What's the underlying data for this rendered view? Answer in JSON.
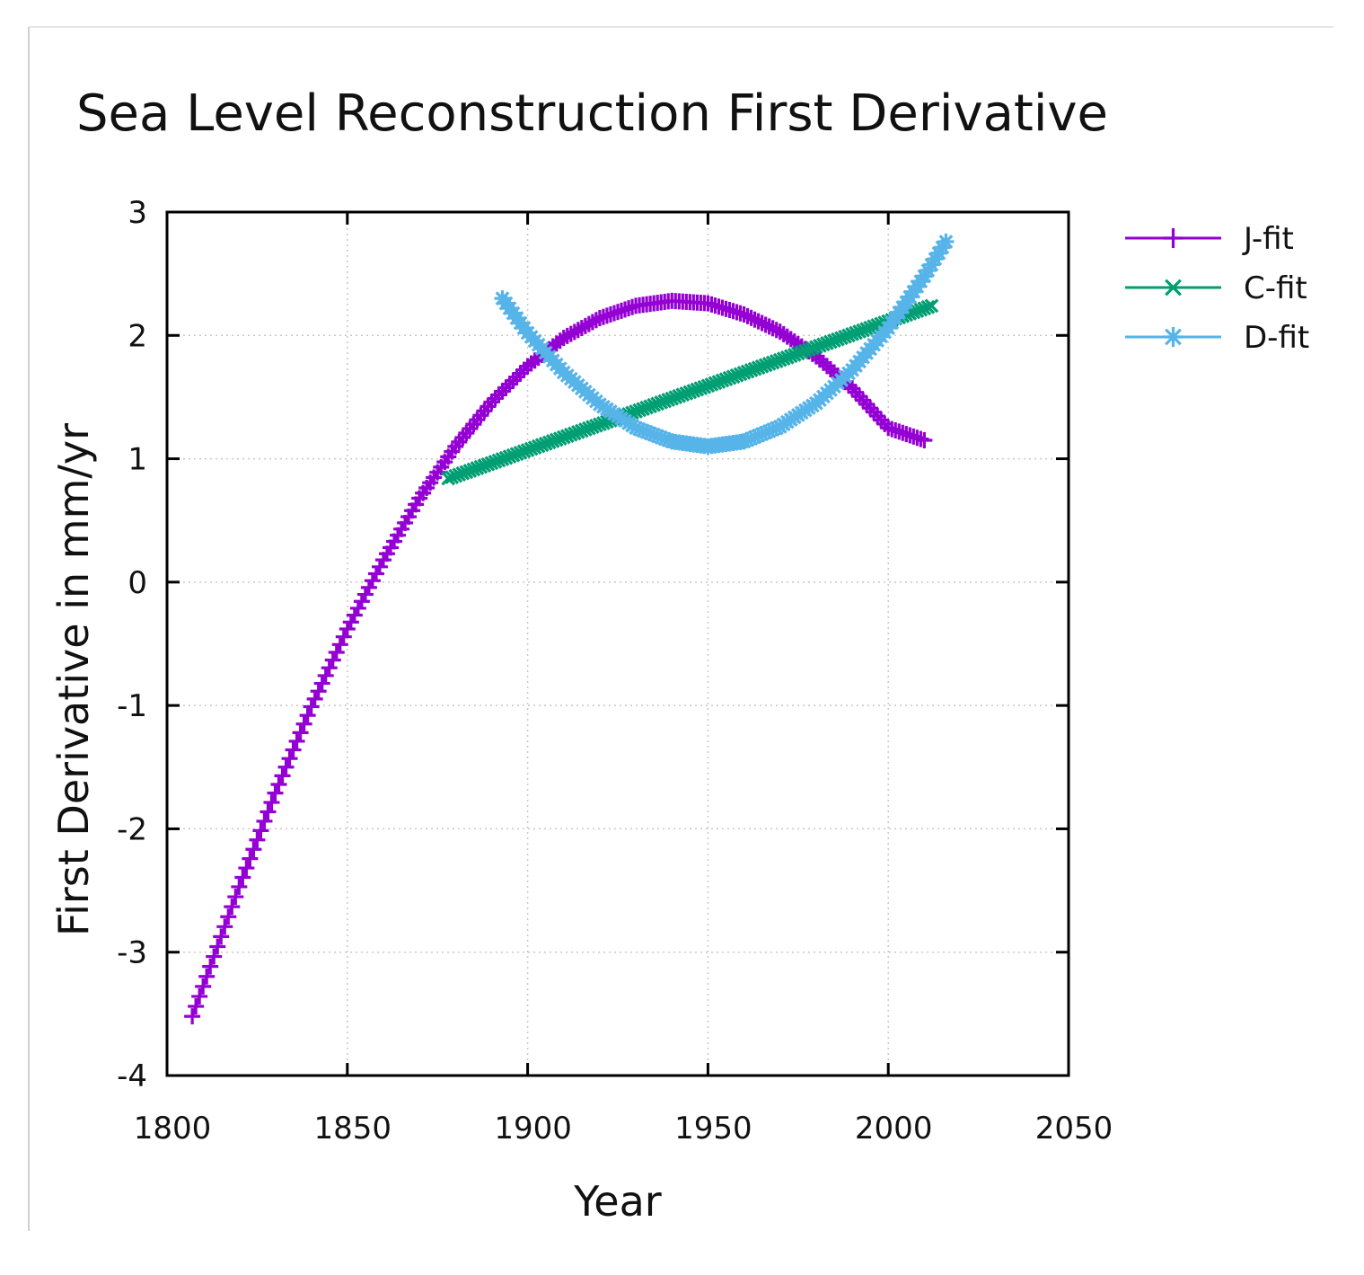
{
  "chart_data": {
    "type": "line",
    "title": "Sea Level Reconstruction First Derivative",
    "xlabel": "Year",
    "ylabel": "First Derivative in mm/yr",
    "xlim": [
      1800,
      2050
    ],
    "ylim": [
      -4,
      3
    ],
    "xticks": [
      1800,
      1850,
      1900,
      1950,
      2000,
      2050
    ],
    "yticks": [
      -4,
      -3,
      -2,
      -1,
      0,
      1,
      2,
      3
    ],
    "grid": true,
    "legend_position": "outside-top-right",
    "series": [
      {
        "name": "J-fit",
        "color": "#9400d3",
        "marker": "plus",
        "x": [
          1807,
          1820,
          1830,
          1840,
          1850,
          1860,
          1870,
          1880,
          1890,
          1900,
          1910,
          1920,
          1930,
          1940,
          1950,
          1960,
          1970,
          1980,
          1990,
          2000,
          2010
        ],
        "values": [
          -3.52,
          -2.47,
          -1.71,
          -1.01,
          -0.38,
          0.18,
          0.68,
          1.1,
          1.46,
          1.75,
          1.98,
          2.14,
          2.24,
          2.28,
          2.26,
          2.17,
          2.03,
          1.83,
          1.57,
          1.25,
          1.15
        ]
      },
      {
        "name": "C-fit",
        "color": "#009e73",
        "marker": "x",
        "x": [
          1878,
          2012
        ],
        "values": [
          0.84,
          2.24
        ]
      },
      {
        "name": "D-fit",
        "color": "#56b4e9",
        "marker": "star",
        "x": [
          1893,
          1900,
          1910,
          1920,
          1930,
          1940,
          1950,
          1960,
          1970,
          1980,
          1990,
          2000,
          2010,
          2016
        ],
        "values": [
          2.3,
          2.02,
          1.7,
          1.44,
          1.25,
          1.14,
          1.1,
          1.14,
          1.26,
          1.45,
          1.72,
          2.06,
          2.48,
          2.76
        ]
      }
    ]
  }
}
